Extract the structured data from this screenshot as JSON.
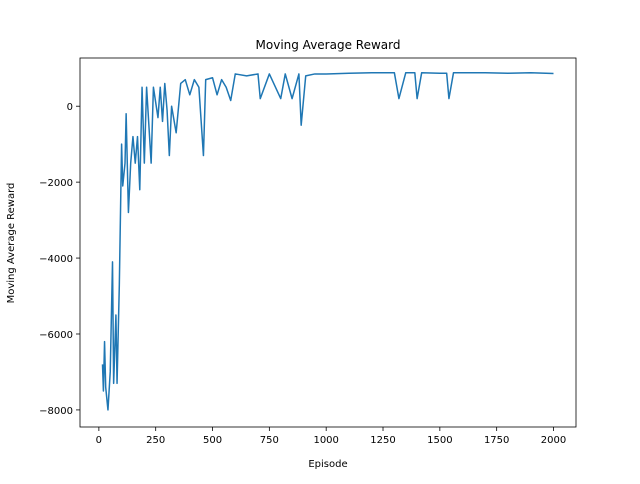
{
  "chart_data": {
    "type": "line",
    "title": "Moving Average Reward",
    "x_label": "Episode",
    "y_label": "Moving Average Reward",
    "x": [
      16,
      20,
      25,
      30,
      40,
      50,
      60,
      65,
      75,
      80,
      90,
      100,
      105,
      115,
      120,
      130,
      140,
      150,
      160,
      170,
      180,
      190,
      200,
      210,
      230,
      240,
      260,
      270,
      280,
      290,
      300,
      310,
      320,
      340,
      360,
      380,
      400,
      420,
      440,
      460,
      470,
      500,
      520,
      540,
      560,
      580,
      600,
      650,
      700,
      710,
      750,
      800,
      820,
      850,
      880,
      890,
      910,
      950,
      1000,
      1100,
      1200,
      1300,
      1320,
      1350,
      1390,
      1400,
      1420,
      1500,
      1530,
      1540,
      1560,
      1700,
      1800,
      1900,
      2000
    ],
    "values": [
      -6800,
      -7500,
      -6200,
      -7400,
      -8000,
      -7000,
      -4100,
      -7300,
      -5500,
      -7300,
      -4700,
      -1000,
      -2100,
      -1500,
      -200,
      -2800,
      -1500,
      -800,
      -1500,
      -800,
      -2200,
      500,
      -1500,
      500,
      -1500,
      500,
      -300,
      500,
      -400,
      600,
      -100,
      -1300,
      0,
      -700,
      600,
      700,
      300,
      700,
      500,
      -1300,
      700,
      750,
      300,
      700,
      500,
      150,
      850,
      800,
      850,
      200,
      850,
      200,
      850,
      200,
      850,
      -500,
      800,
      850,
      850,
      870,
      880,
      880,
      200,
      880,
      880,
      200,
      880,
      870,
      870,
      200,
      880,
      880,
      870,
      880,
      860
    ],
    "color": "#1f77b4",
    "xlim": [
      -83,
      2099
    ],
    "ylim": [
      -8450,
      1270
    ],
    "xticks": [
      0,
      250,
      500,
      750,
      1000,
      1250,
      1500,
      1750,
      2000
    ],
    "yticks": [
      {
        "value": -8000,
        "label": "−8000"
      },
      {
        "value": -6000,
        "label": "−6000"
      },
      {
        "value": -4000,
        "label": "−4000"
      },
      {
        "value": -2000,
        "label": "−2000"
      },
      0
    ]
  }
}
